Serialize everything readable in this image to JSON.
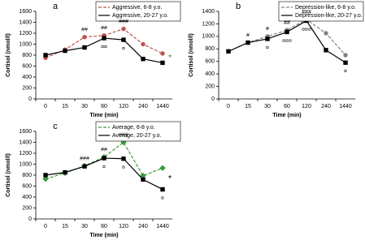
{
  "chart_data": [
    {
      "type": "line",
      "title": "a",
      "xlabel": "Time (min)",
      "ylabel": "Cortisol (nmol/l)",
      "categories": [
        "0",
        "15",
        "30",
        "60",
        "120",
        "240",
        "1440"
      ],
      "ylim": [
        0,
        1600
      ],
      "yticks": [
        0,
        200,
        400,
        600,
        800,
        1000,
        1200,
        1400,
        1600
      ],
      "legend": "upper right",
      "series": [
        {
          "name": "Aggressive, 6-8 y.o.",
          "color": "#c0504d",
          "line_style": "dashed",
          "marker": "circle",
          "values": [
            750,
            900,
            1130,
            1160,
            1280,
            1000,
            830
          ]
        },
        {
          "name": "Aggressive, 20-27 y.o.",
          "color": "#000000",
          "line_style": "solid",
          "marker": "square",
          "values": [
            800,
            880,
            940,
            1110,
            1080,
            730,
            660
          ]
        }
      ],
      "annotations": [
        {
          "text": "##",
          "x": "30",
          "position": "above"
        },
        {
          "text": "##",
          "x": "60",
          "position": "above"
        },
        {
          "text": "###",
          "x": "120",
          "position": "above"
        },
        {
          "text": "¤¤",
          "x": "60",
          "position": "below"
        },
        {
          "text": "¤",
          "x": "120",
          "position": "below"
        },
        {
          "text": "*",
          "x": "1440",
          "position": "right",
          "color": "#3a9a3a"
        }
      ]
    },
    {
      "type": "line",
      "title": "b",
      "xlabel": "Time (min)",
      "ylabel": "Cortisol (nmol/l)",
      "categories": [
        "0",
        "15",
        "30",
        "60",
        "120",
        "240",
        "1440"
      ],
      "ylim": [
        0,
        1400
      ],
      "yticks": [
        0,
        200,
        400,
        600,
        800,
        1000,
        1200,
        1400
      ],
      "legend": "upper right",
      "series": [
        {
          "name": "Depression-like, 6-8 y.o.",
          "color": "#808080",
          "line_style": "dashed",
          "marker": "circle",
          "values": [
            760,
            900,
            1000,
            1100,
            1270,
            1050,
            700
          ]
        },
        {
          "name": "Depression-like, 20-27 y.o.",
          "color": "#000000",
          "line_style": "solid",
          "marker": "square",
          "values": [
            760,
            900,
            960,
            1070,
            1250,
            780,
            580
          ]
        }
      ],
      "annotations": [
        {
          "text": "#",
          "x": "15",
          "position": "above"
        },
        {
          "text": "#",
          "x": "30",
          "position": "above"
        },
        {
          "text": "##",
          "x": "60",
          "position": "above"
        },
        {
          "text": "###",
          "x": "120",
          "position": "above"
        },
        {
          "text": "¤",
          "x": "30",
          "position": "below"
        },
        {
          "text": "¤¤¤",
          "x": "60",
          "position": "below"
        },
        {
          "text": "¤¤¤",
          "x": "120",
          "position": "below"
        },
        {
          "text": "¤",
          "x": "1440",
          "position": "below"
        }
      ]
    },
    {
      "type": "line",
      "title": "c",
      "xlabel": "Time (min)",
      "ylabel": "Cortisol (nmol/l)",
      "categories": [
        "0",
        "15",
        "30",
        "60",
        "120",
        "240",
        "1440"
      ],
      "ylim": [
        0,
        1600
      ],
      "yticks": [
        0,
        200,
        400,
        600,
        800,
        1000,
        1200,
        1400,
        1600
      ],
      "legend": "upper right",
      "series": [
        {
          "name": "Average, 6-8 y.o.",
          "color": "#3a9a3a",
          "line_style": "dashed",
          "marker": "diamond",
          "values": [
            730,
            840,
            970,
            1130,
            1400,
            790,
            930
          ]
        },
        {
          "name": "Average, 20-27 y.o.",
          "color": "#000000",
          "line_style": "solid",
          "marker": "square",
          "values": [
            800,
            850,
            960,
            1110,
            1100,
            720,
            540
          ]
        }
      ],
      "annotations": [
        {
          "text": "###",
          "x": "30",
          "position": "above"
        },
        {
          "text": "##",
          "x": "60",
          "position": "above"
        },
        {
          "text": "###",
          "x": "120",
          "position": "above"
        },
        {
          "text": "¤",
          "x": "60",
          "position": "below"
        },
        {
          "text": "¤",
          "x": "120",
          "position": "below"
        },
        {
          "text": "¤",
          "x": "1440",
          "position": "below"
        },
        {
          "text": "*",
          "x": "1440",
          "position": "right"
        }
      ]
    }
  ]
}
